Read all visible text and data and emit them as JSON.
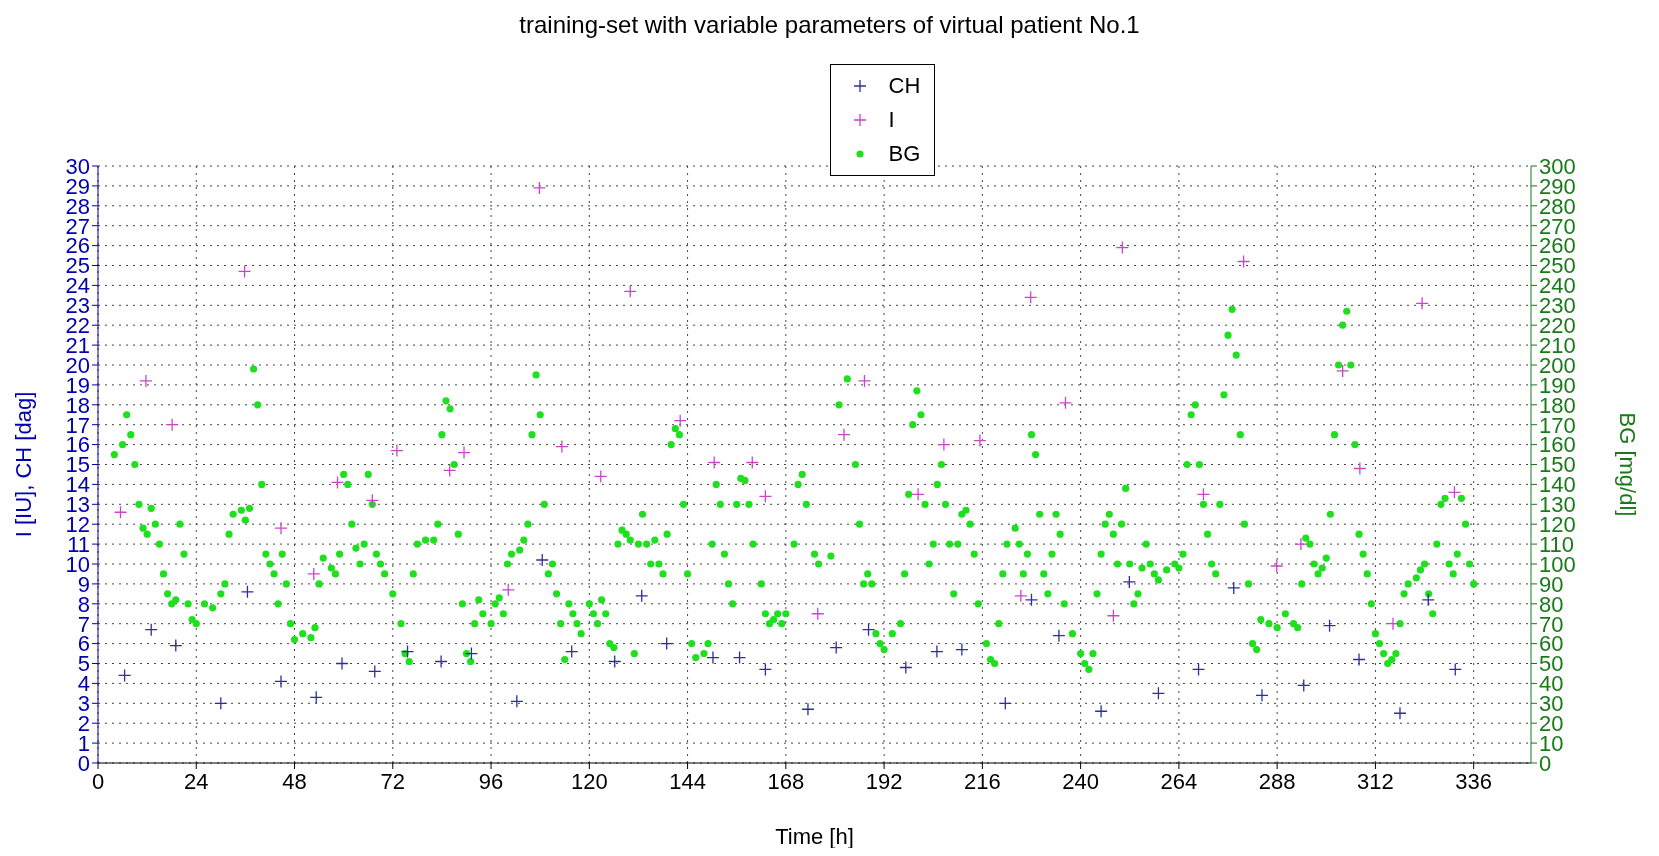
{
  "chart_data": {
    "type": "scatter",
    "title": "training-set with variable parameters of virtual patient No.1",
    "xlabel": "Time [h]",
    "ylabel": "I [IU], CH [dag]",
    "y2label": "BG [mg/dl]",
    "xlim": [
      0,
      350
    ],
    "xticks": [
      0,
      24,
      48,
      72,
      96,
      120,
      144,
      168,
      192,
      216,
      240,
      264,
      288,
      312,
      336
    ],
    "ylim": [
      0,
      30
    ],
    "yticks": [
      0,
      1,
      2,
      3,
      4,
      5,
      6,
      7,
      8,
      9,
      10,
      11,
      12,
      13,
      14,
      15,
      16,
      17,
      18,
      19,
      20,
      21,
      22,
      23,
      24,
      25,
      26,
      27,
      28,
      29,
      30
    ],
    "y2lim": [
      0,
      300
    ],
    "y2ticks": [
      0,
      10,
      20,
      30,
      40,
      50,
      60,
      70,
      80,
      90,
      100,
      110,
      120,
      130,
      140,
      150,
      160,
      170,
      180,
      190,
      200,
      210,
      220,
      230,
      240,
      250,
      260,
      270,
      280,
      290,
      300
    ],
    "grid": true,
    "legend": "top",
    "series": [
      {
        "name": "CH",
        "color": "#2e2e9e",
        "marker": "cross",
        "x": [
          6.5,
          13,
          19,
          30,
          36.5,
          44.7,
          53.3,
          59.6,
          67.6,
          75.6,
          83.8,
          91.2,
          102.3,
          108.5,
          115.7,
          126.2,
          132.8,
          138.9,
          150.2,
          156.7,
          163,
          173.4,
          180.3,
          188.2,
          197.3,
          204.9,
          211,
          221.6,
          228,
          234.7,
          245,
          251.9,
          259,
          268.8,
          277.4,
          284.3,
          294.5,
          300.8,
          308,
          318,
          324.9,
          331.5
        ],
        "values": [
          4.4,
          6.7,
          5.9,
          3.0,
          8.6,
          4.1,
          3.3,
          5.0,
          4.6,
          5.6,
          5.1,
          5.5,
          3.1,
          10.2,
          5.6,
          5.1,
          8.4,
          6.0,
          5.3,
          5.3,
          4.7,
          2.7,
          5.8,
          6.7,
          4.8,
          5.6,
          5.7,
          3.0,
          8.2,
          6.4,
          2.6,
          9.1,
          3.5,
          4.7,
          8.8,
          3.4,
          3.9,
          6.9,
          5.2,
          2.5,
          8.2,
          4.7
        ]
      },
      {
        "name": "I",
        "color": "#cc44cc",
        "marker": "cross",
        "x": [
          5.5,
          11.7,
          18.1,
          35.8,
          44.7,
          52.7,
          58.5,
          67,
          73,
          85.9,
          89.4,
          100.2,
          107.8,
          113.3,
          122.8,
          130,
          142.2,
          150.5,
          159.8,
          163,
          175.8,
          182.2,
          187.2,
          200.3,
          206.6,
          215.4,
          225.4,
          227.8,
          236.3,
          248,
          250.2,
          270,
          279.8,
          287.9,
          293.8,
          304,
          308.2,
          316.3,
          323.4,
          331.3
        ],
        "values": [
          12.6,
          19.2,
          17.0,
          24.7,
          11.8,
          9.5,
          14.1,
          13.2,
          15.7,
          14.7,
          15.6,
          8.7,
          28.9,
          15.9,
          14.4,
          23.7,
          17.2,
          15.1,
          15.1,
          13.4,
          7.5,
          16.5,
          19.2,
          13.5,
          16.0,
          16.2,
          8.4,
          23.4,
          18.1,
          7.4,
          25.9,
          13.5,
          25.2,
          9.9,
          11.0,
          19.7,
          14.8,
          7.0,
          23.1,
          13.6
        ]
      },
      {
        "name": "BG",
        "color": "#1ee01e",
        "marker": "circle",
        "axis": "y2",
        "x": [
          4,
          6,
          7,
          8,
          9,
          10,
          11,
          12,
          13,
          14,
          15,
          16,
          17,
          18,
          19,
          20,
          21,
          22,
          23,
          24,
          26,
          28,
          30,
          31,
          32,
          33,
          35,
          36,
          37,
          38,
          39,
          40,
          41,
          42,
          43,
          44,
          45,
          46,
          47,
          48,
          50,
          52,
          53,
          54,
          55,
          57,
          58,
          59,
          60,
          61,
          62,
          63,
          64,
          65,
          66,
          67,
          68,
          69,
          70,
          72,
          74,
          75,
          76,
          77,
          78,
          80,
          82,
          83,
          84,
          85,
          86,
          87,
          88,
          89,
          90,
          91,
          92,
          93,
          94,
          96,
          97,
          98,
          99,
          100,
          101,
          103,
          104,
          105,
          106,
          107,
          108,
          109,
          110,
          111,
          112,
          113,
          114,
          115,
          116,
          117,
          118,
          120,
          121,
          122,
          123,
          124,
          125,
          126,
          127,
          128,
          129,
          130,
          131,
          132,
          133,
          134,
          135,
          136,
          137,
          138,
          139,
          140,
          141,
          142,
          143,
          144,
          145,
          146,
          148,
          149,
          150,
          151,
          152,
          153,
          154,
          155,
          156,
          157,
          158,
          159,
          160,
          162,
          163,
          164,
          165,
          166,
          167,
          168,
          170,
          171,
          172,
          173,
          175,
          176,
          179,
          181,
          183,
          185,
          186,
          187,
          188,
          189,
          190,
          191,
          192,
          194,
          196,
          197,
          198,
          199,
          200,
          201,
          202,
          203,
          204,
          205,
          206,
          207,
          208,
          209,
          210,
          211,
          212,
          213,
          214,
          215,
          217,
          218,
          219,
          220,
          221,
          222,
          224,
          225,
          226,
          227,
          228,
          229,
          230,
          231,
          232,
          233,
          234,
          235,
          236,
          238,
          240,
          241,
          242,
          243,
          244,
          245,
          246,
          247,
          248,
          249,
          250,
          251,
          252,
          253,
          254,
          255,
          256,
          257,
          258,
          259,
          261,
          263,
          264,
          265,
          266,
          267,
          268,
          269,
          270,
          271,
          272,
          273,
          274,
          275,
          276,
          277,
          278,
          279,
          280,
          281,
          282,
          283,
          284,
          286,
          288,
          290,
          292,
          293,
          294,
          295,
          296,
          297,
          298,
          299,
          300,
          301,
          302,
          303,
          304,
          305,
          306,
          307,
          308,
          309,
          310,
          311,
          312,
          313,
          314,
          315,
          316,
          317,
          318,
          319,
          320,
          322,
          323,
          324,
          325,
          326,
          327,
          328,
          329,
          330,
          331,
          332,
          333,
          334,
          335,
          336
        ],
        "values": [
          155,
          160,
          175,
          165,
          150,
          130,
          118,
          115,
          128,
          120,
          110,
          95,
          85,
          80,
          82,
          120,
          105,
          80,
          72,
          70,
          80,
          78,
          85,
          90,
          115,
          125,
          127,
          122,
          128,
          198,
          180,
          140,
          105,
          100,
          95,
          80,
          105,
          90,
          70,
          62,
          65,
          63,
          68,
          90,
          103,
          98,
          95,
          105,
          145,
          140,
          120,
          108,
          100,
          110,
          145,
          130,
          105,
          100,
          95,
          85,
          70,
          55,
          51,
          95,
          110,
          112,
          112,
          120,
          165,
          182,
          178,
          150,
          115,
          80,
          55,
          51,
          70,
          82,
          75,
          70,
          80,
          83,
          75,
          100,
          105,
          107,
          112,
          120,
          165,
          195,
          175,
          130,
          95,
          100,
          85,
          70,
          52,
          80,
          75,
          70,
          65,
          80,
          75,
          70,
          82,
          75,
          60,
          58,
          110,
          117,
          115,
          112,
          55,
          110,
          125,
          110,
          100,
          112,
          100,
          95,
          115,
          160,
          168,
          165,
          130,
          95,
          60,
          53,
          55,
          60,
          110,
          140,
          130,
          105,
          90,
          80,
          130,
          143,
          142,
          130,
          110,
          90,
          75,
          70,
          72,
          75,
          70,
          75,
          110,
          140,
          145,
          130,
          105,
          100,
          104,
          180,
          193,
          150,
          120,
          90,
          95,
          90,
          65,
          60,
          57,
          65,
          70,
          95,
          135,
          170,
          187,
          175,
          130,
          100,
          110,
          140,
          150,
          130,
          110,
          85,
          110,
          125,
          127,
          120,
          105,
          80,
          60,
          52,
          50,
          70,
          95,
          110,
          118,
          110,
          95,
          105,
          165,
          155,
          125,
          95,
          85,
          105,
          125,
          115,
          80,
          65,
          55,
          50,
          47,
          55,
          85,
          105,
          120,
          125,
          115,
          100,
          120,
          138,
          100,
          80,
          85,
          98,
          110,
          100,
          95,
          92,
          97,
          100,
          98,
          105,
          150,
          175,
          180,
          150,
          130,
          115,
          100,
          95,
          130,
          185,
          215,
          228,
          205,
          165,
          120,
          90,
          60,
          57,
          72,
          70,
          68,
          75,
          70,
          68,
          90,
          113,
          110,
          100,
          95,
          98,
          103,
          125,
          165,
          200,
          220,
          227,
          200,
          160,
          115,
          105,
          95,
          80,
          65,
          60,
          55,
          50,
          52,
          55,
          70,
          85,
          90,
          93,
          97,
          100,
          85,
          75,
          110,
          130,
          133,
          100,
          95,
          105,
          133,
          120,
          100,
          90
        ]
      }
    ]
  }
}
